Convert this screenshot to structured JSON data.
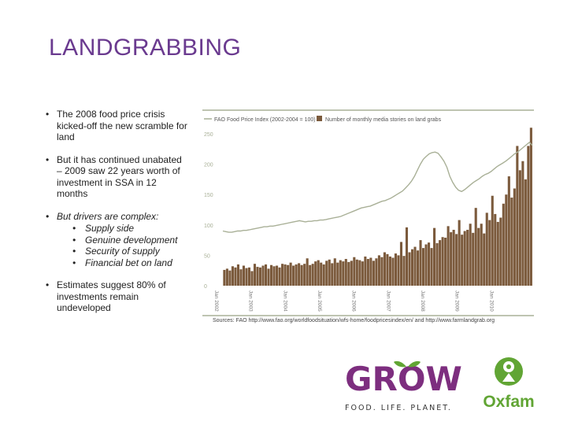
{
  "slide": {
    "title": "LANDGRABBING",
    "bullets": [
      {
        "text": "The 2008 food price crisis kicked-off the new scramble for land"
      },
      {
        "text": "But it has continued unabated – 2009 saw 22 years worth of investment in SSA in 12 months"
      },
      {
        "text": "But drivers are complex:",
        "subitems": [
          "Supply side",
          "Genuine development",
          "Security of supply",
          "Financial bet on land"
        ]
      },
      {
        "text": "Estimates suggest 80% of investments remain undeveloped"
      }
    ]
  },
  "chart_data": {
    "type": "bar",
    "legend": [
      "FAO Food Price Index (2002-2004 = 100)",
      "Number of monthly media stories on land grabs"
    ],
    "ylim": [
      0,
      250
    ],
    "yticks": [
      "0",
      "50",
      "100",
      "150",
      "200",
      "250"
    ],
    "xticks": [
      "Jan 2002",
      "Jan 2003",
      "Jan 2004",
      "Jan 2005",
      "Jan 2006",
      "Jan 2007",
      "Jan 2008",
      "Jan 2009",
      "Jan 2010"
    ],
    "source": "Sources: FAO http://www.fao.org/worldfoodsituation/wfs-home/foodpricesindex/en/ and http://www.farmlandgrab.org",
    "colors": {
      "bars": "#7b5a3c",
      "line": "#a9b097",
      "axis": "#a9b097"
    },
    "series": [
      {
        "name": "Number of monthly media stories on land grabs",
        "values": [
          26,
          28,
          25,
          32,
          30,
          35,
          27,
          33,
          29,
          30,
          24,
          36,
          31,
          30,
          33,
          35,
          28,
          34,
          32,
          33,
          30,
          36,
          35,
          34,
          38,
          33,
          35,
          37,
          34,
          36,
          45,
          34,
          36,
          40,
          42,
          38,
          35,
          41,
          43,
          37,
          45,
          38,
          42,
          40,
          44,
          39,
          41,
          47,
          43,
          42,
          40,
          48,
          44,
          46,
          41,
          45,
          50,
          47,
          55,
          52,
          48,
          46,
          53,
          50,
          72,
          49,
          96,
          55,
          60,
          64,
          58,
          75,
          62,
          68,
          71,
          62,
          95,
          70,
          75,
          80,
          79,
          98,
          88,
          92,
          85,
          108,
          84,
          90,
          92,
          102,
          87,
          128,
          95,
          102,
          86,
          120,
          108,
          148,
          118,
          105,
          112,
          135,
          150,
          180,
          145,
          160,
          230,
          190,
          205,
          175,
          230,
          260
        ]
      },
      {
        "name": "FAO Food Price Index (2002-2004 = 100)",
        "values": [
          90,
          89,
          88,
          88,
          89,
          90,
          90,
          91,
          91,
          92,
          93,
          94,
          95,
          96,
          97,
          97,
          98,
          98,
          99,
          100,
          101,
          102,
          103,
          104,
          105,
          106,
          107,
          106,
          105,
          106,
          106,
          107,
          107,
          108,
          108,
          109,
          110,
          111,
          112,
          113,
          114,
          116,
          118,
          120,
          122,
          124,
          126,
          128,
          129,
          130,
          131,
          133,
          135,
          137,
          139,
          140,
          142,
          144,
          147,
          150,
          153,
          156,
          161,
          166,
          172,
          180,
          190,
          200,
          208,
          213,
          217,
          219,
          220,
          218,
          212,
          205,
          195,
          180,
          170,
          162,
          157,
          155,
          158,
          162,
          166,
          170,
          173,
          176,
          180,
          183,
          185,
          188,
          192,
          196,
          199,
          202,
          205,
          209,
          213,
          217,
          220,
          224,
          228,
          232,
          236,
          231
        ]
      }
    ]
  },
  "logos": {
    "grow": {
      "wordmark": "GROW",
      "tagline": "FOOD. LIFE. PLANET.",
      "color": "#7d2e7f",
      "leaf_color": "#61a534"
    },
    "oxfam": {
      "wordmark": "Oxfam",
      "color": "#61a534"
    }
  }
}
